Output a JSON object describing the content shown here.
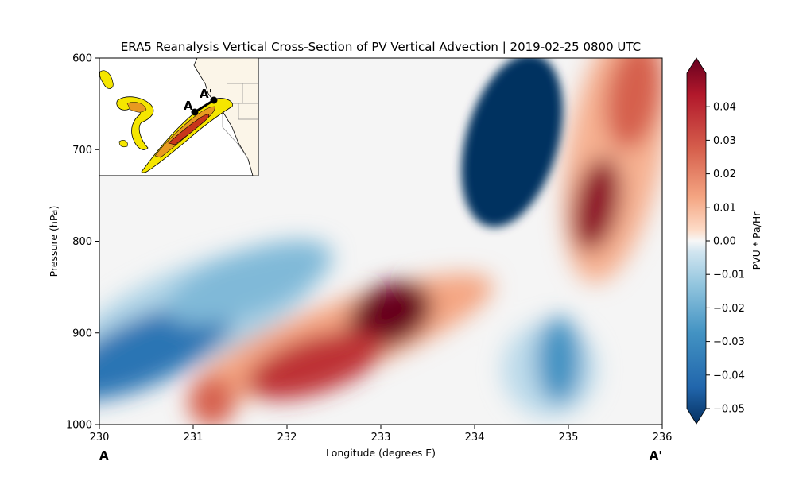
{
  "chart_data": {
    "type": "heatmap",
    "title": "ERA5 Reanalysis Vertical Cross-Section of PV Vertical Advection | 2019-02-25 0800 UTC",
    "xlabel": "Longitude (degrees E)",
    "ylabel": "Pressure (hPa)",
    "x_ticks": [
      "230",
      "231",
      "232",
      "233",
      "234",
      "235",
      "236"
    ],
    "y_ticks": [
      "600",
      "700",
      "800",
      "900",
      "1000"
    ],
    "xlim": [
      230,
      236
    ],
    "ylim": [
      1000,
      600
    ],
    "y_inverted": true,
    "section_start_label": "A",
    "section_end_label": "A'",
    "colorbar": {
      "label": "PVU * Pa/Hr",
      "min": -0.05,
      "max": 0.05,
      "ticks": [
        "0.04",
        "0.03",
        "0.02",
        "0.01",
        "0.00",
        "−0.01",
        "−0.02",
        "−0.03",
        "−0.04",
        "−0.05"
      ],
      "tick_values": [
        0.04,
        0.03,
        0.02,
        0.01,
        0.0,
        -0.01,
        -0.02,
        -0.03,
        -0.04,
        -0.05
      ],
      "extend": "both",
      "colormap": "RdBu_r"
    },
    "features": [
      {
        "name": "strong negative core",
        "lon": 234.4,
        "pressure": 690,
        "value": -0.06
      },
      {
        "name": "positive band upper right",
        "lon": 235.3,
        "pressure": 760,
        "value": 0.045
      },
      {
        "name": "positive band upper",
        "lon": 235.7,
        "pressure": 640,
        "value": 0.025
      },
      {
        "name": "positive diagonal max",
        "lon": 233.1,
        "pressure": 880,
        "value": 0.05
      },
      {
        "name": "positive diagonal",
        "lon": 232.3,
        "pressure": 935,
        "value": 0.035
      },
      {
        "name": "positive diagonal lower",
        "lon": 231.2,
        "pressure": 975,
        "value": 0.025
      },
      {
        "name": "negative band lower left",
        "lon": 230.5,
        "pressure": 920,
        "value": -0.035
      },
      {
        "name": "negative band",
        "lon": 231.6,
        "pressure": 845,
        "value": -0.015
      },
      {
        "name": "negative lower right",
        "lon": 234.9,
        "pressure": 930,
        "value": -0.025
      }
    ],
    "inset": {
      "section_start_label": "A",
      "section_end_label": "A'"
    }
  }
}
